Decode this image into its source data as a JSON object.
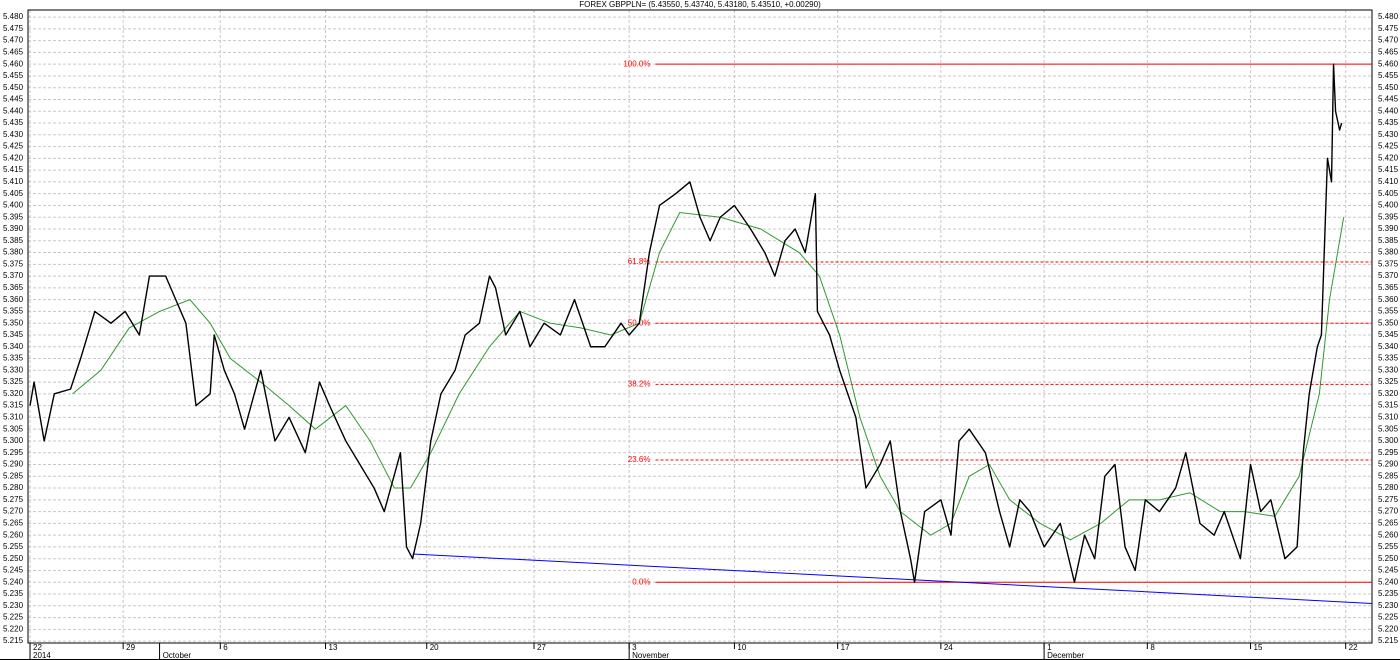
{
  "chart_data": {
    "type": "line",
    "title": "FOREX GBPPLN= (5.43550, 5.43740, 5.43180, 5.43510, +0.00290)",
    "color": "#000000",
    "x": [
      0,
      0.2,
      0.7,
      1.2,
      2.0,
      2.5,
      3.2,
      4.0,
      4.7,
      5.4,
      5.9,
      6.7,
      7.2,
      7.7,
      8.2,
      8.9,
      9.1,
      9.6,
      10.1,
      10.6,
      11.4,
      12.1,
      12.8,
      13.6,
      14.3,
      14.8,
      15.6,
      16.3,
      17.0,
      17.5,
      18.3,
      18.6,
      18.9,
      19.3,
      19.8,
      20.3,
      21.0,
      21.5,
      22.2,
      22.7,
      23.0,
      23.5,
      24.2,
      24.7,
      25.4,
      26.2,
      26.9,
      27.7,
      28.4,
      29.2,
      29.6,
      30.1,
      30.6,
      31.1,
      31.9,
      32.6,
      33.1,
      33.6,
      34.1,
      34.8,
      35.6,
      36.3,
      36.8,
      37.3,
      37.8,
      38.3,
      38.8,
      38.9,
      39.5,
      40.0,
      40.8,
      41.3,
      42.0,
      42.5,
      43.0,
      43.5,
      43.7,
      44.2,
      45.0,
      45.5,
      45.9,
      46.4,
      47.2,
      47.9,
      48.4,
      48.9,
      49.4,
      50.1,
      50.9,
      51.6,
      52.1,
      52.6,
      53.1,
      53.6,
      54.1,
      54.6,
      55.1,
      55.8,
      56.6,
      57.1,
      57.8,
      58.5,
      59.0,
      59.8,
      60.3,
      60.8,
      61.3,
      62.0,
      62.6,
      62.9,
      63.2,
      63.6,
      63.8,
      64.1,
      64.3,
      64.4,
      64.5,
      64.7,
      64.8
    ],
    "values": [
      5.315,
      5.325,
      5.3,
      5.32,
      5.322,
      5.335,
      5.355,
      5.35,
      5.355,
      5.345,
      5.37,
      5.37,
      5.36,
      5.35,
      5.315,
      5.32,
      5.345,
      5.33,
      5.32,
      5.305,
      5.33,
      5.3,
      5.31,
      5.295,
      5.325,
      5.315,
      5.3,
      5.29,
      5.28,
      5.27,
      5.295,
      5.255,
      5.25,
      5.265,
      5.3,
      5.32,
      5.33,
      5.345,
      5.35,
      5.37,
      5.365,
      5.345,
      5.355,
      5.34,
      5.35,
      5.345,
      5.36,
      5.34,
      5.34,
      5.35,
      5.345,
      5.35,
      5.38,
      5.4,
      5.405,
      5.41,
      5.395,
      5.385,
      5.395,
      5.4,
      5.39,
      5.38,
      5.37,
      5.385,
      5.39,
      5.38,
      5.405,
      5.355,
      5.345,
      5.33,
      5.31,
      5.28,
      5.29,
      5.3,
      5.27,
      5.25,
      5.24,
      5.27,
      5.275,
      5.26,
      5.3,
      5.305,
      5.295,
      5.27,
      5.255,
      5.275,
      5.27,
      5.255,
      5.265,
      5.24,
      5.26,
      5.25,
      5.285,
      5.29,
      5.255,
      5.245,
      5.275,
      5.27,
      5.28,
      5.295,
      5.265,
      5.26,
      5.27,
      5.25,
      5.29,
      5.27,
      5.275,
      5.25,
      5.255,
      5.295,
      5.32,
      5.34,
      5.345,
      5.42,
      5.41,
      5.46,
      5.44,
      5.432,
      5.435
    ],
    "moving_average": {
      "color": "#2e9a2e",
      "x": [
        2.1,
        3.5,
        4.9,
        6.4,
        7.9,
        8.9,
        9.9,
        11.4,
        12.8,
        14.1,
        15.6,
        16.8,
        18.0,
        18.8,
        19.8,
        21.2,
        22.7,
        24.2,
        25.7,
        27.2,
        28.7,
        30.1,
        31.1,
        32.1,
        34.1,
        36.1,
        38.0,
        39.0,
        40.0,
        41.0,
        42.0,
        43.0,
        44.5,
        45.5,
        46.4,
        47.4,
        48.4,
        49.9,
        51.4,
        52.9,
        54.3,
        55.8,
        57.3,
        58.8,
        60.0,
        61.5,
        62.7,
        63.7,
        64.2,
        64.9
      ],
      "values": [
        5.32,
        5.33,
        5.348,
        5.355,
        5.36,
        5.35,
        5.335,
        5.325,
        5.315,
        5.305,
        5.315,
        5.3,
        5.28,
        5.28,
        5.295,
        5.32,
        5.34,
        5.355,
        5.35,
        5.348,
        5.345,
        5.35,
        5.38,
        5.397,
        5.395,
        5.39,
        5.38,
        5.37,
        5.345,
        5.31,
        5.285,
        5.27,
        5.26,
        5.265,
        5.285,
        5.29,
        5.275,
        5.265,
        5.258,
        5.265,
        5.275,
        5.275,
        5.278,
        5.27,
        5.27,
        5.268,
        5.285,
        5.32,
        5.36,
        5.395
      ]
    },
    "trendline": {
      "color": "#0000ff",
      "x": [
        18.9,
        66.3
      ],
      "values": [
        5.252,
        5.231
      ]
    },
    "fibonacci": {
      "color": "#ff0000",
      "start_x": 30.9,
      "levels": [
        {
          "label": "100.0%",
          "value": 5.46
        },
        {
          "label": "61.8%",
          "value": 5.376
        },
        {
          "label": "50.0%",
          "value": 5.35
        },
        {
          "label": "38.2%",
          "value": 5.324
        },
        {
          "label": "23.6%",
          "value": 5.2919
        },
        {
          "label": "0.0%",
          "value": 5.24
        }
      ]
    },
    "xlim": [
      -0.1,
      66.3
    ],
    "ylim": [
      5.2142,
      5.483
    ],
    "xticks": [
      {
        "value": 0,
        "label": "22"
      },
      {
        "value": 4.6,
        "label": "29"
      },
      {
        "value": 9.4,
        "label": "6"
      },
      {
        "value": 14.6,
        "label": "13"
      },
      {
        "value": 19.6,
        "label": "20"
      },
      {
        "value": 24.9,
        "label": "27"
      },
      {
        "value": 29.6,
        "label": "3"
      },
      {
        "value": 34.8,
        "label": "10"
      },
      {
        "value": 39.9,
        "label": "17"
      },
      {
        "value": 45.0,
        "label": "24"
      },
      {
        "value": 50.1,
        "label": "1"
      },
      {
        "value": 55.2,
        "label": "8"
      },
      {
        "value": 60.3,
        "label": "15"
      },
      {
        "value": 65.0,
        "label": "22"
      }
    ],
    "month_ticks": [
      {
        "value": 0,
        "label": "2014"
      },
      {
        "value": 6.4,
        "label": "October"
      },
      {
        "value": 29.6,
        "label": "November"
      },
      {
        "value": 50.1,
        "label": "December"
      }
    ],
    "yticks": [
      {
        "value": 5.215,
        "label": "5.215"
      },
      {
        "value": 5.22,
        "label": "5.220"
      },
      {
        "value": 5.225,
        "label": "5.225"
      },
      {
        "value": 5.23,
        "label": "5.230"
      },
      {
        "value": 5.235,
        "label": "5.235"
      },
      {
        "value": 5.24,
        "label": "5.240"
      },
      {
        "value": 5.245,
        "label": "5.245"
      },
      {
        "value": 5.25,
        "label": "5.250"
      },
      {
        "value": 5.255,
        "label": "5.255"
      },
      {
        "value": 5.26,
        "label": "5.260"
      },
      {
        "value": 5.265,
        "label": "5.265"
      },
      {
        "value": 5.27,
        "label": "5.270"
      },
      {
        "value": 5.275,
        "label": "5.275"
      },
      {
        "value": 5.28,
        "label": "5.280"
      },
      {
        "value": 5.285,
        "label": "5.285"
      },
      {
        "value": 5.29,
        "label": "5.290"
      },
      {
        "value": 5.295,
        "label": "5.295"
      },
      {
        "value": 5.3,
        "label": "5.300"
      },
      {
        "value": 5.305,
        "label": "5.305"
      },
      {
        "value": 5.31,
        "label": "5.310"
      },
      {
        "value": 5.315,
        "label": "5.315"
      },
      {
        "value": 5.32,
        "label": "5.320"
      },
      {
        "value": 5.325,
        "label": "5.325"
      },
      {
        "value": 5.33,
        "label": "5.330"
      },
      {
        "value": 5.335,
        "label": "5.335"
      },
      {
        "value": 5.34,
        "label": "5.340"
      },
      {
        "value": 5.345,
        "label": "5.345"
      },
      {
        "value": 5.35,
        "label": "5.350"
      },
      {
        "value": 5.355,
        "label": "5.355"
      },
      {
        "value": 5.36,
        "label": "5.360"
      },
      {
        "value": 5.365,
        "label": "5.365"
      },
      {
        "value": 5.37,
        "label": "5.370"
      },
      {
        "value": 5.375,
        "label": "5.375"
      },
      {
        "value": 5.38,
        "label": "5.380"
      },
      {
        "value": 5.385,
        "label": "5.385"
      },
      {
        "value": 5.39,
        "label": "5.390"
      },
      {
        "value": 5.395,
        "label": "5.395"
      },
      {
        "value": 5.4,
        "label": "5.400"
      },
      {
        "value": 5.405,
        "label": "5.405"
      },
      {
        "value": 5.41,
        "label": "5.410"
      },
      {
        "value": 5.415,
        "label": "5.415"
      },
      {
        "value": 5.42,
        "label": "5.420"
      },
      {
        "value": 5.425,
        "label": "5.425"
      },
      {
        "value": 5.43,
        "label": "5.430"
      },
      {
        "value": 5.435,
        "label": "5.435"
      },
      {
        "value": 5.44,
        "label": "5.440"
      },
      {
        "value": 5.445,
        "label": "5.445"
      },
      {
        "value": 5.45,
        "label": "5.450"
      },
      {
        "value": 5.455,
        "label": "5.455"
      },
      {
        "value": 5.46,
        "label": "5.460"
      },
      {
        "value": 5.465,
        "label": "5.465"
      },
      {
        "value": 5.47,
        "label": "5.470"
      },
      {
        "value": 5.475,
        "label": "5.475"
      },
      {
        "value": 5.48,
        "label": "5.480"
      }
    ],
    "grid": true
  }
}
